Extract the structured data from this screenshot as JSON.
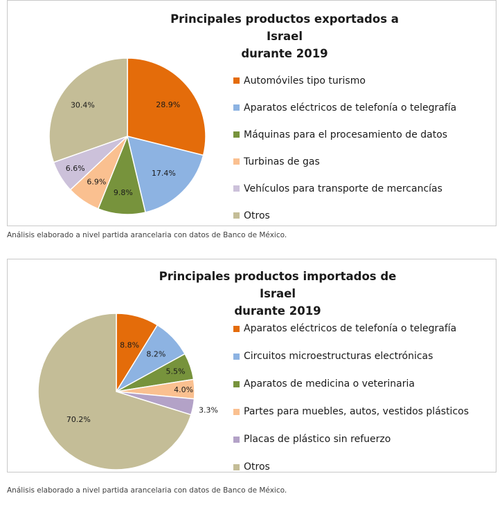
{
  "chart_data": [
    {
      "type": "pie",
      "title": [
        "Principales productos exportados a Israel",
        "durante 2019"
      ],
      "slices": [
        {
          "name": "Automóviles tipo turismo",
          "value": 28.9,
          "label": "28.9%",
          "color": "#e46c0a"
        },
        {
          "name": "Aparatos eléctricos de telefonía o telegrafía",
          "value": 17.4,
          "label": "17.4%",
          "color": "#8db3e2"
        },
        {
          "name": "Máquinas para el procesamiento de datos",
          "value": 9.8,
          "label": "9.8%",
          "color": "#77933c"
        },
        {
          "name": "Turbinas de gas",
          "value": 6.9,
          "label": "6.9%",
          "color": "#fac090"
        },
        {
          "name": "Vehículos para transporte de mercancías",
          "value": 6.6,
          "label": "6.6%",
          "color": "#ccc1da"
        },
        {
          "name": "Otros",
          "value": 30.4,
          "label": "30.4%",
          "color": "#c4bd97"
        }
      ],
      "legend_position": "right",
      "note": "Análisis elaborado a nivel partida arancelaria con datos de Banco de México."
    },
    {
      "type": "pie",
      "title": [
        "Principales productos importados de Israel",
        "durante 2019"
      ],
      "slices": [
        {
          "name": "Aparatos eléctricos de telefonía o telegrafía",
          "value": 8.8,
          "label": "8.8%",
          "color": "#e46c0a"
        },
        {
          "name": "Circuitos microestructuras electrónicas",
          "value": 8.2,
          "label": "8.2%",
          "color": "#8db3e2"
        },
        {
          "name": "Aparatos de medicina o veterinaria",
          "value": 5.5,
          "label": "5.5%",
          "color": "#77933c"
        },
        {
          "name": "Partes para muebles, autos, vestidos plásticos",
          "value": 4.0,
          "label": "4.0%",
          "color": "#fac090"
        },
        {
          "name": "Placas de plástico sin refuerzo",
          "value": 3.3,
          "label": "3.3%",
          "color": "#b3a2c7"
        },
        {
          "name": "Otros",
          "value": 70.2,
          "label": "70.2%",
          "color": "#c4bd97"
        }
      ],
      "legend_position": "right",
      "note": "Análisis elaborado a nivel partida arancelaria con datos de Banco de México."
    }
  ]
}
